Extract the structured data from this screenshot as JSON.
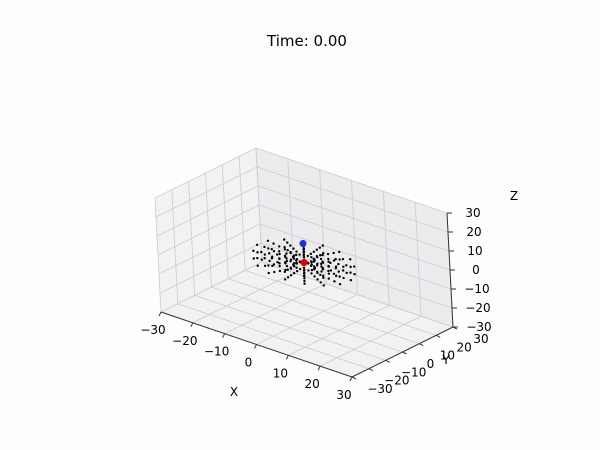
{
  "chart_data": {
    "type": "scatter3d",
    "title": "Time: 0.00",
    "xlabel": "X",
    "ylabel": "Y",
    "zlabel": "Z",
    "xlim": [
      -30,
      30
    ],
    "ylim": [
      -30,
      30
    ],
    "zlim": [
      -30,
      30
    ],
    "xticks": [
      "−30",
      "−20",
      "−10",
      "0",
      "10",
      "20",
      "30"
    ],
    "yticks": [
      "−30",
      "−20",
      "−10",
      "0",
      "10",
      "20",
      "30"
    ],
    "zticks": [
      "−30",
      "−20",
      "−10",
      "0",
      "10",
      "20",
      "30"
    ],
    "tick_values": [
      -30,
      -20,
      -10,
      0,
      10,
      20,
      30
    ],
    "grid": true,
    "series": [
      {
        "name": "particles",
        "color": "#000000",
        "description": "radial spokes of particles around the center",
        "rays": 16,
        "points_per_ray": 6,
        "radius_min": 3,
        "radius_max": 14,
        "z_values": [
          -2,
          2
        ]
      },
      {
        "name": "red body",
        "color": "#e00000",
        "points": [
          [
            0,
            0,
            0
          ]
        ]
      },
      {
        "name": "blue body",
        "color": "#1f2ee0",
        "points": [
          [
            0,
            0,
            10
          ]
        ]
      }
    ]
  }
}
